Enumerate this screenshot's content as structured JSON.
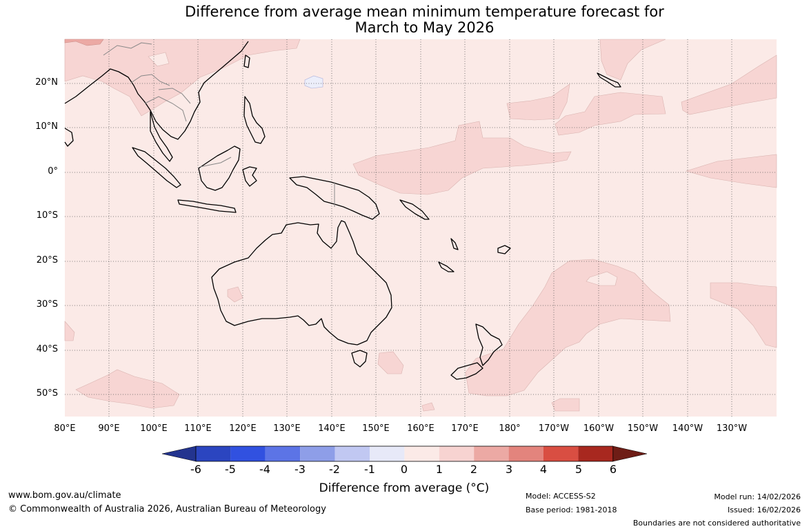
{
  "title_line1": "Difference from average mean minimum temperature forecast for",
  "title_line2": "March to May 2026",
  "lat_labels": [
    "20°N",
    "10°N",
    "0°",
    "10°S",
    "20°S",
    "30°S",
    "40°S",
    "50°S"
  ],
  "lon_labels": [
    "80°E",
    "90°E",
    "100°E",
    "110°E",
    "120°E",
    "130°E",
    "140°E",
    "150°E",
    "160°E",
    "170°E",
    "180°",
    "170°W",
    "160°W",
    "150°W",
    "140°W",
    "130°W"
  ],
  "colorbar": {
    "label": "Difference from average (°C)",
    "ticks": [
      "-6",
      "-5",
      "-4",
      "-3",
      "-2",
      "-1",
      "0",
      "1",
      "2",
      "3",
      "4",
      "5",
      "6"
    ],
    "colors": [
      "#23348f",
      "#2b45c0",
      "#3151e0",
      "#5c74e6",
      "#8e9ee8",
      "#c1c8f2",
      "#e7e9f8",
      "#fbeae7",
      "#f7d3d1",
      "#eca9a4",
      "#e3847d",
      "#d94e42",
      "#a8281f",
      "#6e1d16"
    ]
  },
  "footer": {
    "url": "www.bom.gov.au/climate",
    "copyright": "© Commonwealth of Australia 2026, Australian Bureau of Meteorology",
    "model": "Model: ACCESS-S2",
    "base_period": "Base period: 1981-2018",
    "model_run": "Model run: 14/02/2026",
    "issued": "Issued: 16/02/2026",
    "disclaimer": "Boundaries are not considered authoritative"
  }
}
